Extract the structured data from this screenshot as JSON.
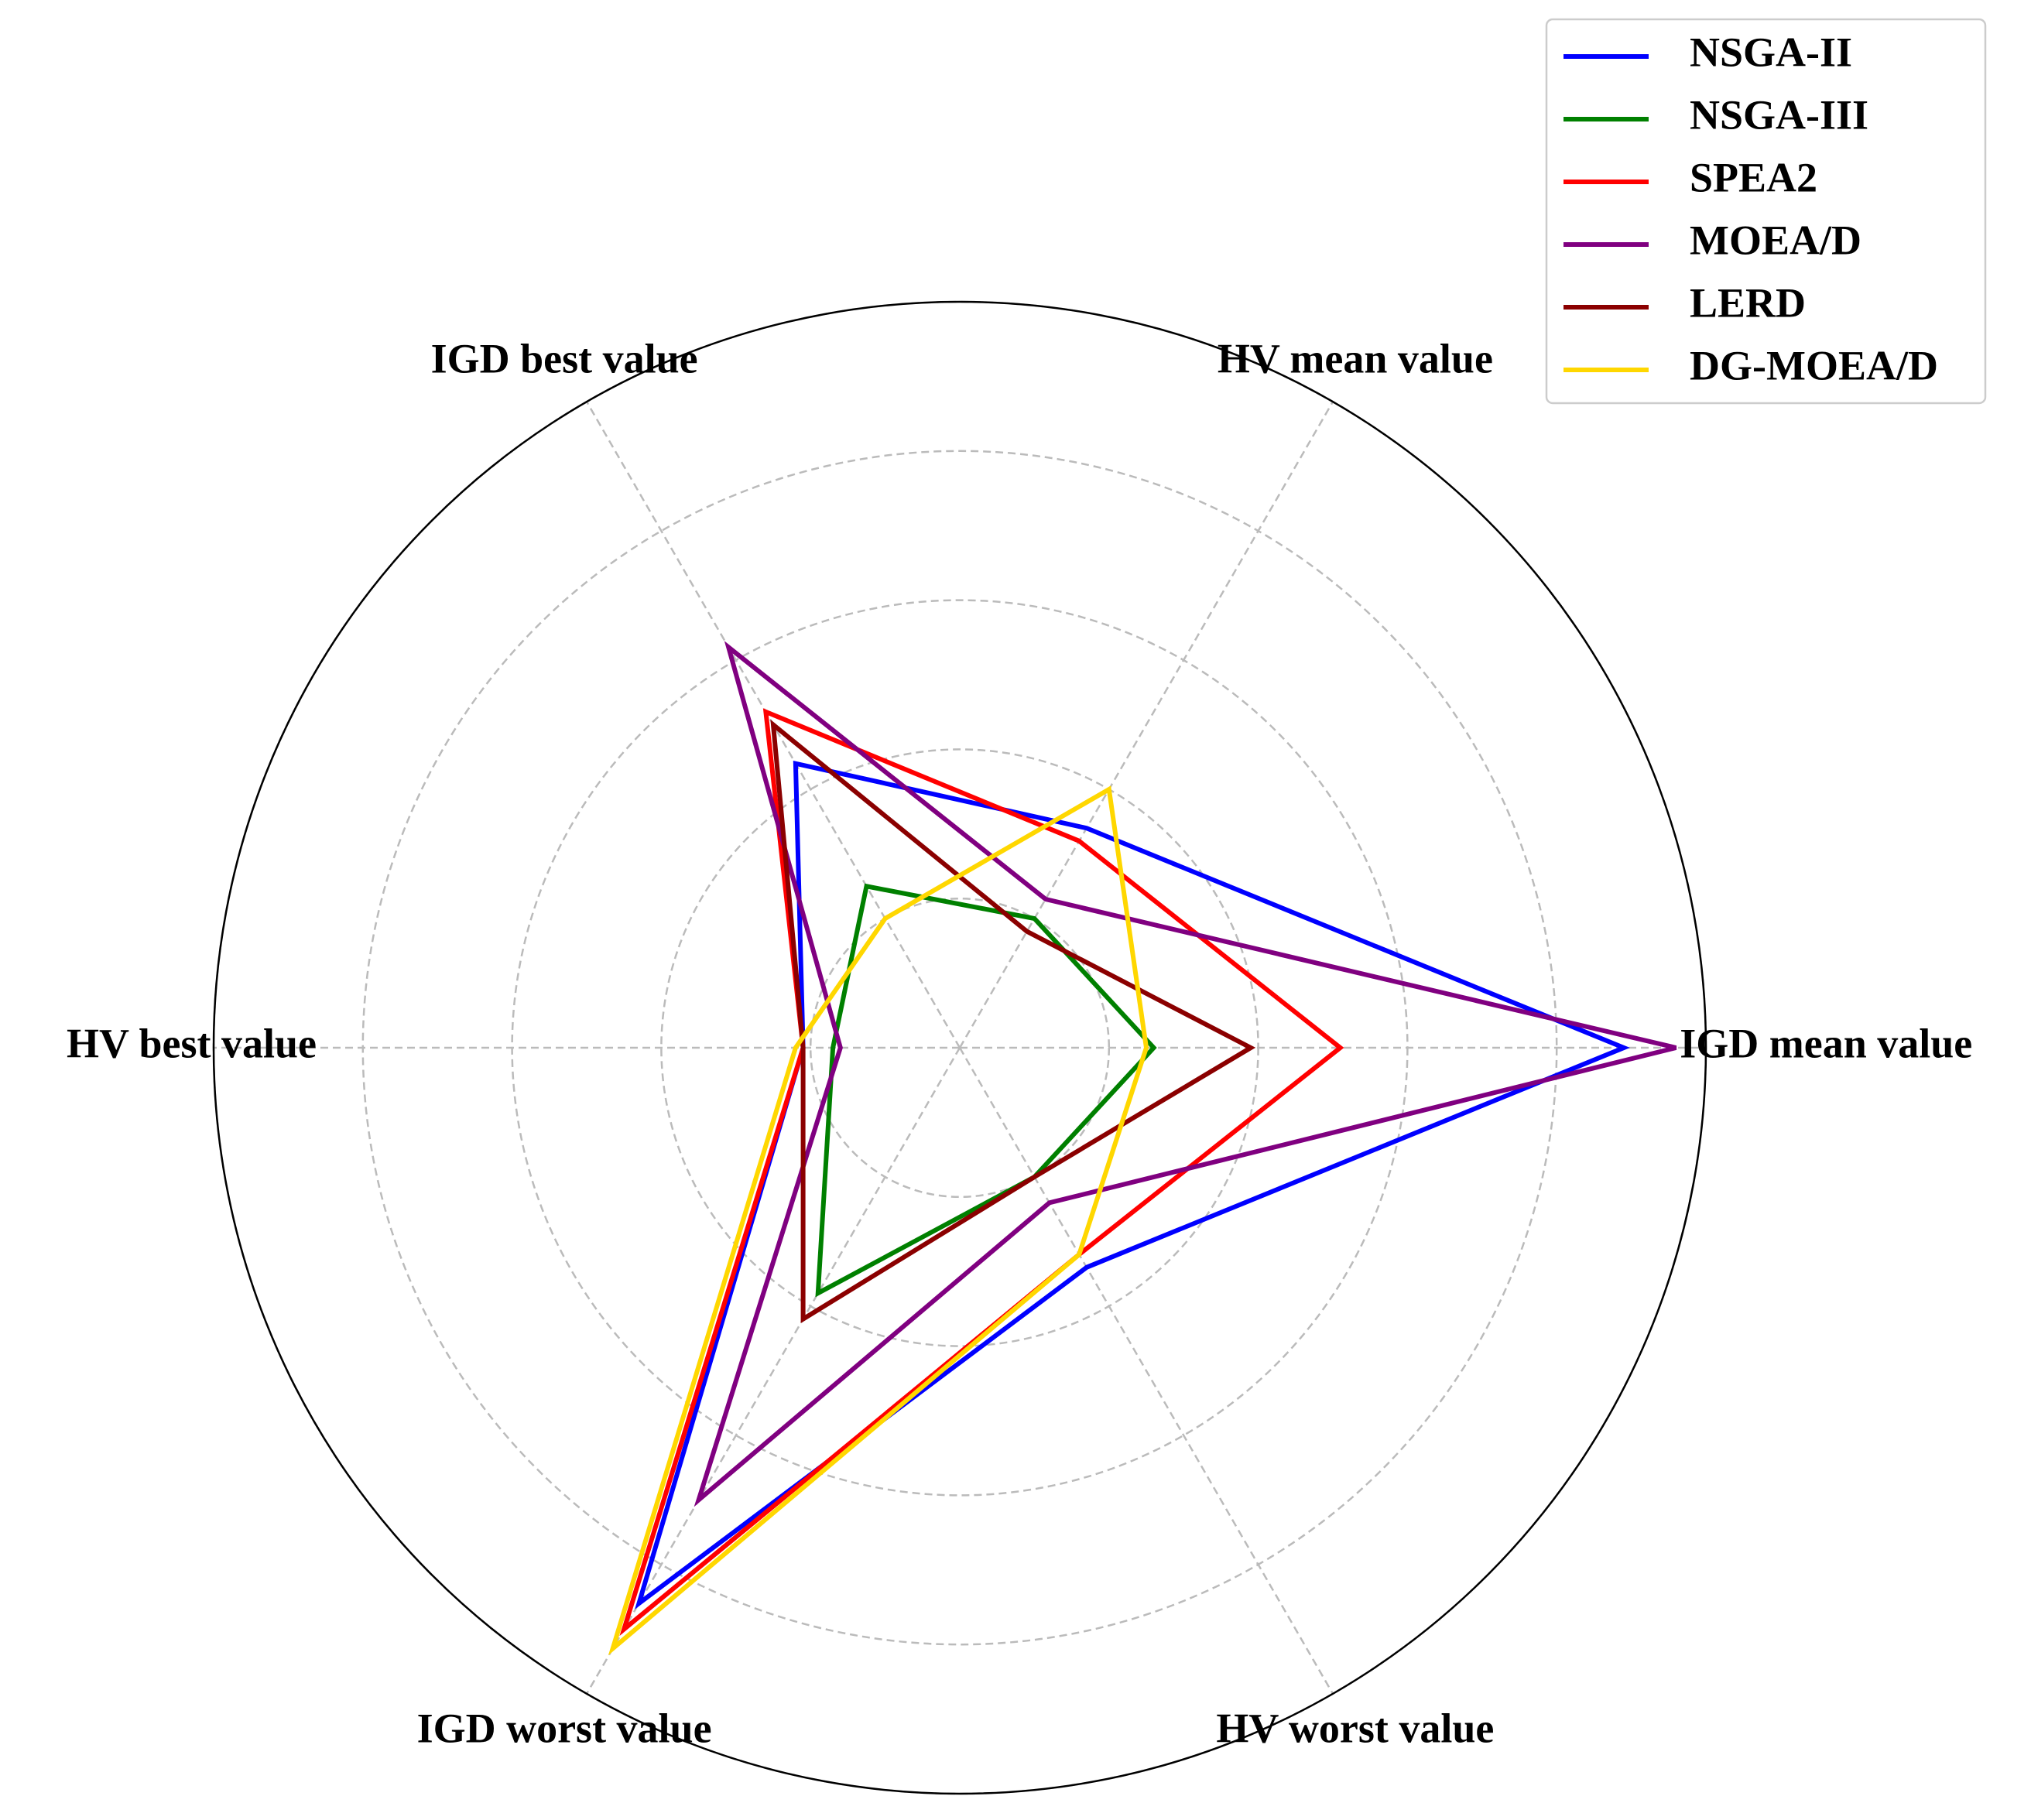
{
  "chart_data": {
    "type": "radar",
    "categories": [
      "IGD mean value",
      "HV mean value",
      "IGD best value",
      "HV best value",
      "IGD worst value",
      "HV worst value"
    ],
    "ylim": [
      0,
      1
    ],
    "yticks": [
      0.2,
      0.4,
      0.6,
      0.8,
      1.0
    ],
    "grid": true,
    "legend": "upper right",
    "series": [
      {
        "name": "NSGA-II",
        "color": "#0000ff",
        "values": [
          0.89,
          0.34,
          0.44,
          0.21,
          0.86,
          0.34
        ]
      },
      {
        "name": "NSGA-III",
        "color": "#008000",
        "values": [
          0.26,
          0.2,
          0.25,
          0.17,
          0.38,
          0.2
        ]
      },
      {
        "name": "SPEA2",
        "color": "#ff0000",
        "values": [
          0.51,
          0.32,
          0.52,
          0.21,
          0.9,
          0.32
        ]
      },
      {
        "name": "MOEA/D",
        "color": "#800080",
        "values": [
          0.96,
          0.23,
          0.62,
          0.16,
          0.7,
          0.24
        ]
      },
      {
        "name": "LERD",
        "color": "#8b0000",
        "values": [
          0.39,
          0.18,
          0.5,
          0.21,
          0.42,
          0.2
        ]
      },
      {
        "name": "DG-MOEA/D",
        "color": "#ffd700",
        "values": [
          0.25,
          0.4,
          0.2,
          0.22,
          0.93,
          0.32
        ]
      }
    ]
  }
}
